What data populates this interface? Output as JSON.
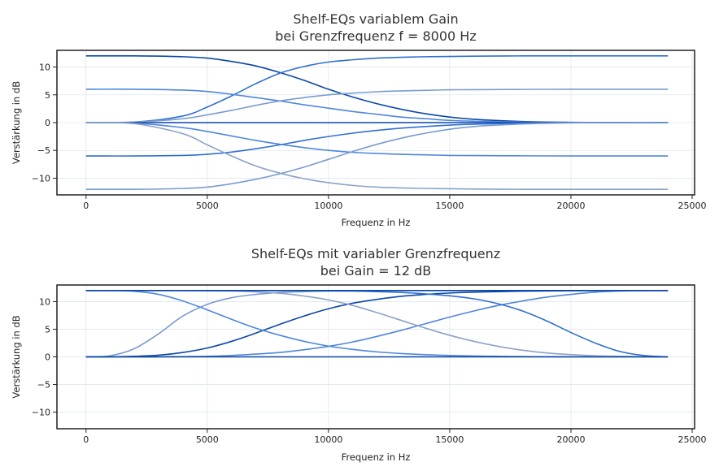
{
  "chart_data": [
    {
      "type": "line",
      "title": "Shelf-EQs variablem Gain\nbei Grenzfrequenz f = 8000 Hz",
      "xlabel": "Frequenz in Hz",
      "ylabel": "Verstärkung in dB",
      "xlim": [
        -1200,
        25100
      ],
      "ylim": [
        -13,
        13
      ],
      "xticks": [
        0,
        5000,
        10000,
        15000,
        20000,
        25000
      ],
      "yticks": [
        -10,
        -5,
        0,
        5,
        10
      ],
      "grid": true,
      "x": [
        0,
        2000,
        4000,
        5000,
        6000,
        7000,
        8000,
        9000,
        10000,
        11000,
        12000,
        13000,
        14000,
        15000,
        16000,
        18000,
        20000,
        22000,
        24000
      ],
      "series": [
        {
          "color": "#0b47a8",
          "values": [
            12,
            12,
            11.85,
            11.6,
            11.0,
            10.2,
            9.0,
            7.6,
            6.0,
            4.6,
            3.4,
            2.4,
            1.6,
            1.0,
            0.6,
            0.2,
            0.05,
            0.0,
            0.0
          ]
        },
        {
          "color": "#2f6fd0",
          "values": [
            0,
            0.1,
            1.2,
            2.8,
            4.8,
            7.0,
            8.9,
            10.1,
            10.9,
            11.3,
            11.6,
            11.75,
            11.85,
            11.9,
            11.95,
            12,
            12,
            12,
            12
          ]
        },
        {
          "color": "#4f86dc",
          "values": [
            6,
            6,
            5.85,
            5.6,
            5.1,
            4.5,
            3.9,
            3.2,
            2.6,
            2.0,
            1.5,
            1.0,
            0.7,
            0.4,
            0.25,
            0.1,
            0.03,
            0.0,
            0.0
          ]
        },
        {
          "color": "#7a9bd0",
          "values": [
            0,
            0.1,
            0.7,
            1.4,
            2.2,
            3.1,
            3.9,
            4.5,
            5.0,
            5.3,
            5.55,
            5.7,
            5.8,
            5.9,
            5.93,
            5.97,
            6,
            6,
            6
          ]
        },
        {
          "color": "#0b47a8",
          "values": [
            0,
            0,
            0,
            0,
            0,
            0,
            0,
            0,
            0,
            0,
            0,
            0,
            0,
            0,
            0,
            0,
            0,
            0,
            0
          ]
        },
        {
          "color": "#2f6fd0",
          "values": [
            -6,
            -6,
            -5.9,
            -5.7,
            -5.3,
            -4.7,
            -4.0,
            -3.2,
            -2.5,
            -1.9,
            -1.4,
            -1.0,
            -0.7,
            -0.45,
            -0.28,
            -0.1,
            -0.03,
            0.0,
            0.0
          ]
        },
        {
          "color": "#4f86dc",
          "values": [
            0,
            -0.1,
            -0.9,
            -1.6,
            -2.4,
            -3.2,
            -3.9,
            -4.5,
            -5.0,
            -5.35,
            -5.55,
            -5.7,
            -5.8,
            -5.9,
            -5.93,
            -5.97,
            -6,
            -6,
            -6
          ]
        },
        {
          "color": "#7a9bd0",
          "values": [
            -12,
            -12,
            -11.85,
            -11.6,
            -11.0,
            -10.2,
            -9.2,
            -8.0,
            -6.6,
            -5.2,
            -3.9,
            -2.8,
            -1.9,
            -1.2,
            -0.7,
            -0.25,
            -0.05,
            0.0,
            0.0
          ]
        },
        {
          "color": "#8aa2c8",
          "values": [
            0,
            -0.2,
            -2.0,
            -4.0,
            -6.0,
            -7.8,
            -9.1,
            -10.1,
            -10.8,
            -11.3,
            -11.6,
            -11.75,
            -11.85,
            -11.9,
            -11.95,
            -12,
            -12,
            -12,
            -12
          ]
        }
      ]
    },
    {
      "type": "line",
      "title": "Shelf-EQs mit variabler Grenzfrequenz\nbei Gain = 12 dB",
      "xlabel": "Frequenz in Hz",
      "ylabel": "Verstärkung in dB",
      "xlim": [
        -1200,
        25100
      ],
      "ylim": [
        -13,
        13
      ],
      "xticks": [
        0,
        5000,
        10000,
        15000,
        20000,
        25000
      ],
      "yticks": [
        -10,
        -5,
        0,
        5,
        10
      ],
      "grid": true,
      "x": [
        0,
        1000,
        2000,
        3000,
        4000,
        5000,
        6000,
        7000,
        8000,
        9000,
        10000,
        11000,
        12000,
        13000,
        14000,
        15000,
        16000,
        17000,
        18000,
        19000,
        20000,
        21000,
        22000,
        23000,
        24000
      ],
      "series": [
        {
          "color": "#7a9bd0",
          "values": [
            0,
            0.2,
            1.5,
            4.2,
            7.4,
            9.5,
            10.7,
            11.3,
            11.65,
            11.8,
            11.9,
            11.95,
            12,
            12,
            12,
            12,
            12,
            12,
            12,
            12,
            12,
            12,
            12,
            12,
            12
          ]
        },
        {
          "color": "#0b47a8",
          "values": [
            0,
            0,
            0.1,
            0.3,
            0.8,
            1.6,
            2.8,
            4.3,
            5.9,
            7.4,
            8.7,
            9.7,
            10.4,
            10.95,
            11.3,
            11.55,
            11.7,
            11.8,
            11.88,
            11.93,
            11.96,
            11.98,
            12,
            12,
            12
          ]
        },
        {
          "color": "#4f86dc",
          "values": [
            0,
            0,
            0,
            0,
            0.05,
            0.1,
            0.25,
            0.5,
            0.8,
            1.3,
            1.9,
            2.7,
            3.7,
            4.8,
            6.0,
            7.2,
            8.3,
            9.3,
            10.1,
            10.8,
            11.3,
            11.7,
            11.9,
            12,
            12
          ]
        },
        {
          "color": "#4f86dc",
          "values": [
            12,
            12,
            11.85,
            11.3,
            10.1,
            8.5,
            6.8,
            5.2,
            3.9,
            2.8,
            1.95,
            1.35,
            0.9,
            0.6,
            0.4,
            0.25,
            0.15,
            0.1,
            0.05,
            0.02,
            0,
            0,
            0,
            0,
            0
          ]
        },
        {
          "color": "#8aa2c8",
          "values": [
            12,
            12,
            12,
            12,
            12,
            11.95,
            11.9,
            11.75,
            11.5,
            11.0,
            10.3,
            9.3,
            8.0,
            6.6,
            5.2,
            3.9,
            2.8,
            1.9,
            1.2,
            0.7,
            0.4,
            0.2,
            0.1,
            0.03,
            0
          ]
        },
        {
          "color": "#2f6fd0",
          "values": [
            12,
            12,
            12,
            12,
            12,
            12,
            12,
            12,
            12,
            12,
            11.95,
            11.9,
            11.8,
            11.65,
            11.4,
            11.05,
            10.5,
            9.6,
            8.3,
            6.5,
            4.4,
            2.5,
            1.0,
            0.25,
            0
          ]
        },
        {
          "color": "#0b47a8",
          "values": [
            12,
            12,
            12,
            12,
            12,
            12,
            12,
            12,
            12,
            12,
            12,
            12,
            12,
            12,
            12,
            12,
            12,
            12,
            12,
            12,
            12,
            12,
            12,
            12,
            12
          ]
        },
        {
          "color": "#0b47a8",
          "values": [
            0,
            0,
            0,
            0,
            0,
            0,
            0,
            0,
            0,
            0,
            0,
            0,
            0,
            0,
            0,
            0,
            0,
            0,
            0,
            0,
            0,
            0,
            0,
            0,
            0
          ]
        }
      ]
    }
  ]
}
